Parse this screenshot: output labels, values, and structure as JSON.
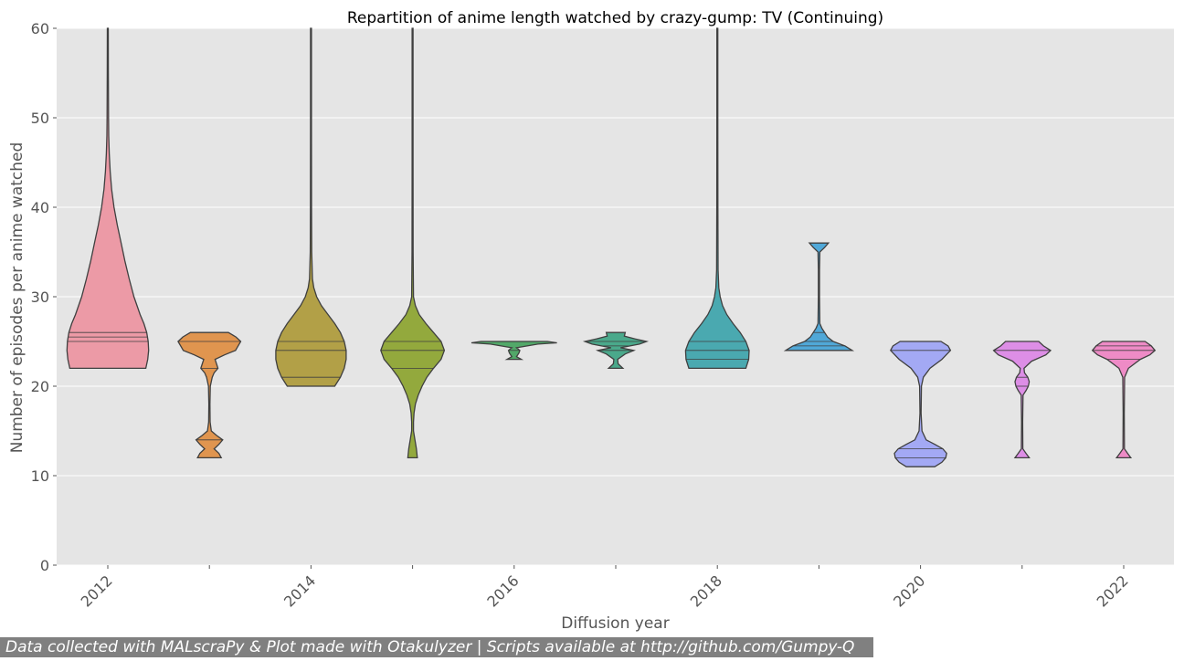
{
  "chart_data": {
    "type": "violin",
    "title": "Repartition of anime length watched by crazy-gump: TV (Continuing)",
    "xlabel": "Diffusion year",
    "ylabel": "Number of episodes per anime watched",
    "ylim": [
      0,
      60
    ],
    "yticks": [
      0,
      10,
      20,
      30,
      40,
      50,
      60
    ],
    "xticks": [
      "2012",
      "2014",
      "2016",
      "2018",
      "2020",
      "2022"
    ],
    "categories": [
      "2012",
      "2013",
      "2014",
      "2015",
      "2016",
      "2017",
      "2018",
      "2019",
      "2020",
      "2021",
      "2022"
    ],
    "background": "#e5e5e5",
    "grid": true,
    "violins": [
      {
        "year": "2012",
        "color": "#ec9aa6",
        "min": 22,
        "max": 60,
        "quartiles": [
          25,
          25.5,
          26
        ],
        "profile": [
          [
            22,
            0.8
          ],
          [
            23,
            0.84
          ],
          [
            24,
            0.86
          ],
          [
            25,
            0.85
          ],
          [
            26,
            0.82
          ],
          [
            27,
            0.76
          ],
          [
            28,
            0.68
          ],
          [
            30,
            0.55
          ],
          [
            32,
            0.45
          ],
          [
            34,
            0.36
          ],
          [
            36,
            0.28
          ],
          [
            38,
            0.2
          ],
          [
            40,
            0.13
          ],
          [
            42,
            0.08
          ],
          [
            44,
            0.05
          ],
          [
            46,
            0.03
          ],
          [
            48,
            0.02
          ],
          [
            50,
            0.015
          ],
          [
            55,
            0.012
          ],
          [
            60,
            0.01
          ]
        ]
      },
      {
        "year": "2013",
        "color": "#e0954f",
        "min": 12,
        "max": 26,
        "quartiles": [
          14,
          22,
          25
        ],
        "profile": [
          [
            12,
            0.25
          ],
          [
            12.5,
            0.2
          ],
          [
            13,
            0.1
          ],
          [
            13.5,
            0.2
          ],
          [
            14,
            0.28
          ],
          [
            14.5,
            0.15
          ],
          [
            15,
            0.04
          ],
          [
            16,
            0.015
          ],
          [
            18,
            0.012
          ],
          [
            20,
            0.02
          ],
          [
            21,
            0.06
          ],
          [
            21.5,
            0.1
          ],
          [
            22,
            0.18
          ],
          [
            22.5,
            0.15
          ],
          [
            23,
            0.12
          ],
          [
            23.5,
            0.32
          ],
          [
            24,
            0.55
          ],
          [
            25,
            0.66
          ],
          [
            25.5,
            0.56
          ],
          [
            26,
            0.4
          ]
        ]
      },
      {
        "year": "2014",
        "color": "#b2a047",
        "min": 20,
        "max": 60,
        "quartiles": [
          21,
          24,
          25
        ],
        "profile": [
          [
            20,
            0.5
          ],
          [
            21,
            0.62
          ],
          [
            22,
            0.7
          ],
          [
            23,
            0.74
          ],
          [
            24,
            0.74
          ],
          [
            25,
            0.7
          ],
          [
            26,
            0.62
          ],
          [
            27,
            0.5
          ],
          [
            28,
            0.36
          ],
          [
            29,
            0.22
          ],
          [
            30,
            0.12
          ],
          [
            31,
            0.06
          ],
          [
            32,
            0.03
          ],
          [
            35,
            0.015
          ],
          [
            40,
            0.012
          ],
          [
            50,
            0.01
          ],
          [
            60,
            0.01
          ]
        ]
      },
      {
        "year": "2015",
        "color": "#93a93d",
        "min": 12,
        "max": 60,
        "quartiles": [
          22,
          24,
          25
        ],
        "profile": [
          [
            12,
            0.1
          ],
          [
            13,
            0.08
          ],
          [
            14,
            0.05
          ],
          [
            15,
            0.02
          ],
          [
            16,
            0.02
          ],
          [
            17,
            0.03
          ],
          [
            18,
            0.06
          ],
          [
            19,
            0.12
          ],
          [
            20,
            0.2
          ],
          [
            21,
            0.3
          ],
          [
            22,
            0.44
          ],
          [
            23,
            0.6
          ],
          [
            24,
            0.67
          ],
          [
            25,
            0.6
          ],
          [
            26,
            0.44
          ],
          [
            27,
            0.28
          ],
          [
            28,
            0.14
          ],
          [
            29,
            0.06
          ],
          [
            30,
            0.02
          ],
          [
            35,
            0.012
          ],
          [
            45,
            0.01
          ],
          [
            60,
            0.01
          ]
        ]
      },
      {
        "year": "2016",
        "color": "#52a869",
        "min": 23,
        "max": 25,
        "quartiles": [
          23,
          24,
          25
        ],
        "profile": [
          [
            23,
            0.15
          ],
          [
            23.3,
            0.05
          ],
          [
            23.7,
            0.1
          ],
          [
            24,
            0.12
          ],
          [
            24.3,
            0.05
          ],
          [
            24.7,
            0.5
          ],
          [
            24.85,
            0.9
          ],
          [
            25,
            0.7
          ]
        ]
      },
      {
        "year": "2017",
        "color": "#4aa98b",
        "min": 22,
        "max": 26,
        "quartiles": [
          24,
          24.5,
          25
        ],
        "profile": [
          [
            22,
            0.15
          ],
          [
            22.5,
            0.05
          ],
          [
            23,
            0.04
          ],
          [
            23.6,
            0.2
          ],
          [
            24,
            0.38
          ],
          [
            24.3,
            0.1
          ],
          [
            24.7,
            0.5
          ],
          [
            25,
            0.65
          ],
          [
            25.3,
            0.4
          ],
          [
            25.6,
            0.18
          ],
          [
            26,
            0.2
          ]
        ]
      },
      {
        "year": "2018",
        "color": "#4aa9b0",
        "min": 22,
        "max": 60,
        "quartiles": [
          23,
          24,
          25
        ],
        "profile": [
          [
            22,
            0.6
          ],
          [
            23,
            0.66
          ],
          [
            24,
            0.67
          ],
          [
            25,
            0.6
          ],
          [
            26,
            0.48
          ],
          [
            27,
            0.33
          ],
          [
            28,
            0.2
          ],
          [
            29,
            0.11
          ],
          [
            30,
            0.06
          ],
          [
            31,
            0.03
          ],
          [
            33,
            0.015
          ],
          [
            40,
            0.012
          ],
          [
            50,
            0.01
          ],
          [
            60,
            0.01
          ]
        ]
      },
      {
        "year": "2019",
        "color": "#50a8d8",
        "min": 24,
        "max": 36,
        "quartiles": [
          24.5,
          25,
          26
        ],
        "profile": [
          [
            24,
            0.7
          ],
          [
            24.5,
            0.55
          ],
          [
            25,
            0.3
          ],
          [
            25.5,
            0.18
          ],
          [
            26,
            0.12
          ],
          [
            26.5,
            0.06
          ],
          [
            27,
            0.02
          ],
          [
            30,
            0.012
          ],
          [
            33,
            0.012
          ],
          [
            35,
            0.02
          ],
          [
            35.5,
            0.12
          ],
          [
            36,
            0.2
          ]
        ]
      },
      {
        "year": "2020",
        "color": "#a3a9f4",
        "min": 11,
        "max": 25,
        "quartiles": [
          12,
          13,
          24
        ],
        "profile": [
          [
            11,
            0.3
          ],
          [
            11.5,
            0.45
          ],
          [
            12,
            0.53
          ],
          [
            12.5,
            0.55
          ],
          [
            13,
            0.47
          ],
          [
            13.5,
            0.3
          ],
          [
            14,
            0.12
          ],
          [
            15,
            0.03
          ],
          [
            17,
            0.012
          ],
          [
            20,
            0.02
          ],
          [
            21,
            0.06
          ],
          [
            22,
            0.2
          ],
          [
            23,
            0.45
          ],
          [
            24,
            0.63
          ],
          [
            24.5,
            0.58
          ],
          [
            25,
            0.43
          ]
        ]
      },
      {
        "year": "2021",
        "color": "#dd8ee6",
        "min": 12,
        "max": 25,
        "quartiles": [
          20,
          21,
          24
        ],
        "profile": [
          [
            12,
            0.15
          ],
          [
            12.5,
            0.08
          ],
          [
            13,
            0.015
          ],
          [
            16,
            0.012
          ],
          [
            19,
            0.02
          ],
          [
            19.5,
            0.08
          ],
          [
            20,
            0.13
          ],
          [
            20.5,
            0.15
          ],
          [
            21,
            0.12
          ],
          [
            21.5,
            0.05
          ],
          [
            22,
            0.04
          ],
          [
            22.8,
            0.2
          ],
          [
            23.5,
            0.5
          ],
          [
            24,
            0.6
          ],
          [
            24.5,
            0.45
          ],
          [
            25,
            0.35
          ]
        ]
      },
      {
        "year": "2022",
        "color": "#ee8bc6",
        "min": 12,
        "max": 25,
        "quartiles": [
          23,
          24,
          24.5
        ],
        "profile": [
          [
            12,
            0.15
          ],
          [
            12.5,
            0.08
          ],
          [
            13,
            0.015
          ],
          [
            17,
            0.012
          ],
          [
            21,
            0.02
          ],
          [
            22,
            0.1
          ],
          [
            23,
            0.35
          ],
          [
            23.5,
            0.55
          ],
          [
            24,
            0.66
          ],
          [
            24.5,
            0.58
          ],
          [
            25,
            0.45
          ]
        ]
      }
    ]
  },
  "footer": {
    "text": "Data collected with MALscraPy & Plot made with Otakulyzer | Scripts available at http://github.com/Gumpy-Q"
  }
}
